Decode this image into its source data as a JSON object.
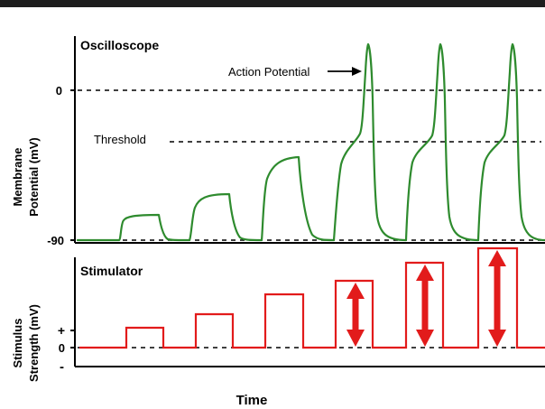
{
  "oscilloscope": {
    "panel_title": "Oscilloscope",
    "ylabel_line1": "Membrane",
    "ylabel_line2": "Potential (mV)",
    "tick_zero": "0",
    "tick_rest": "-90",
    "threshold_label": "Threshold",
    "action_potential_label": "Action Potential",
    "trace_color": "#2e8b2e"
  },
  "stimulator": {
    "panel_title": "Stimulator",
    "ylabel_line1": "Stimulus",
    "ylabel_line2": "Strength (mV)",
    "tick_plus": "+",
    "tick_zero": "0",
    "tick_minus": "-",
    "trace_color": "#e21b1b",
    "arrow_color": "#e21b1b"
  },
  "xlabel": "Time",
  "chart_data": {
    "type": "line",
    "stimulus_levels": [
      1,
      2,
      3,
      4,
      5,
      6
    ],
    "membrane_response_level": [
      "subthreshold",
      "subthreshold",
      "subthreshold",
      "action-potential",
      "action-potential",
      "action-potential"
    ],
    "action_potential_peaks_present": [
      false,
      false,
      false,
      true,
      true,
      true
    ]
  }
}
